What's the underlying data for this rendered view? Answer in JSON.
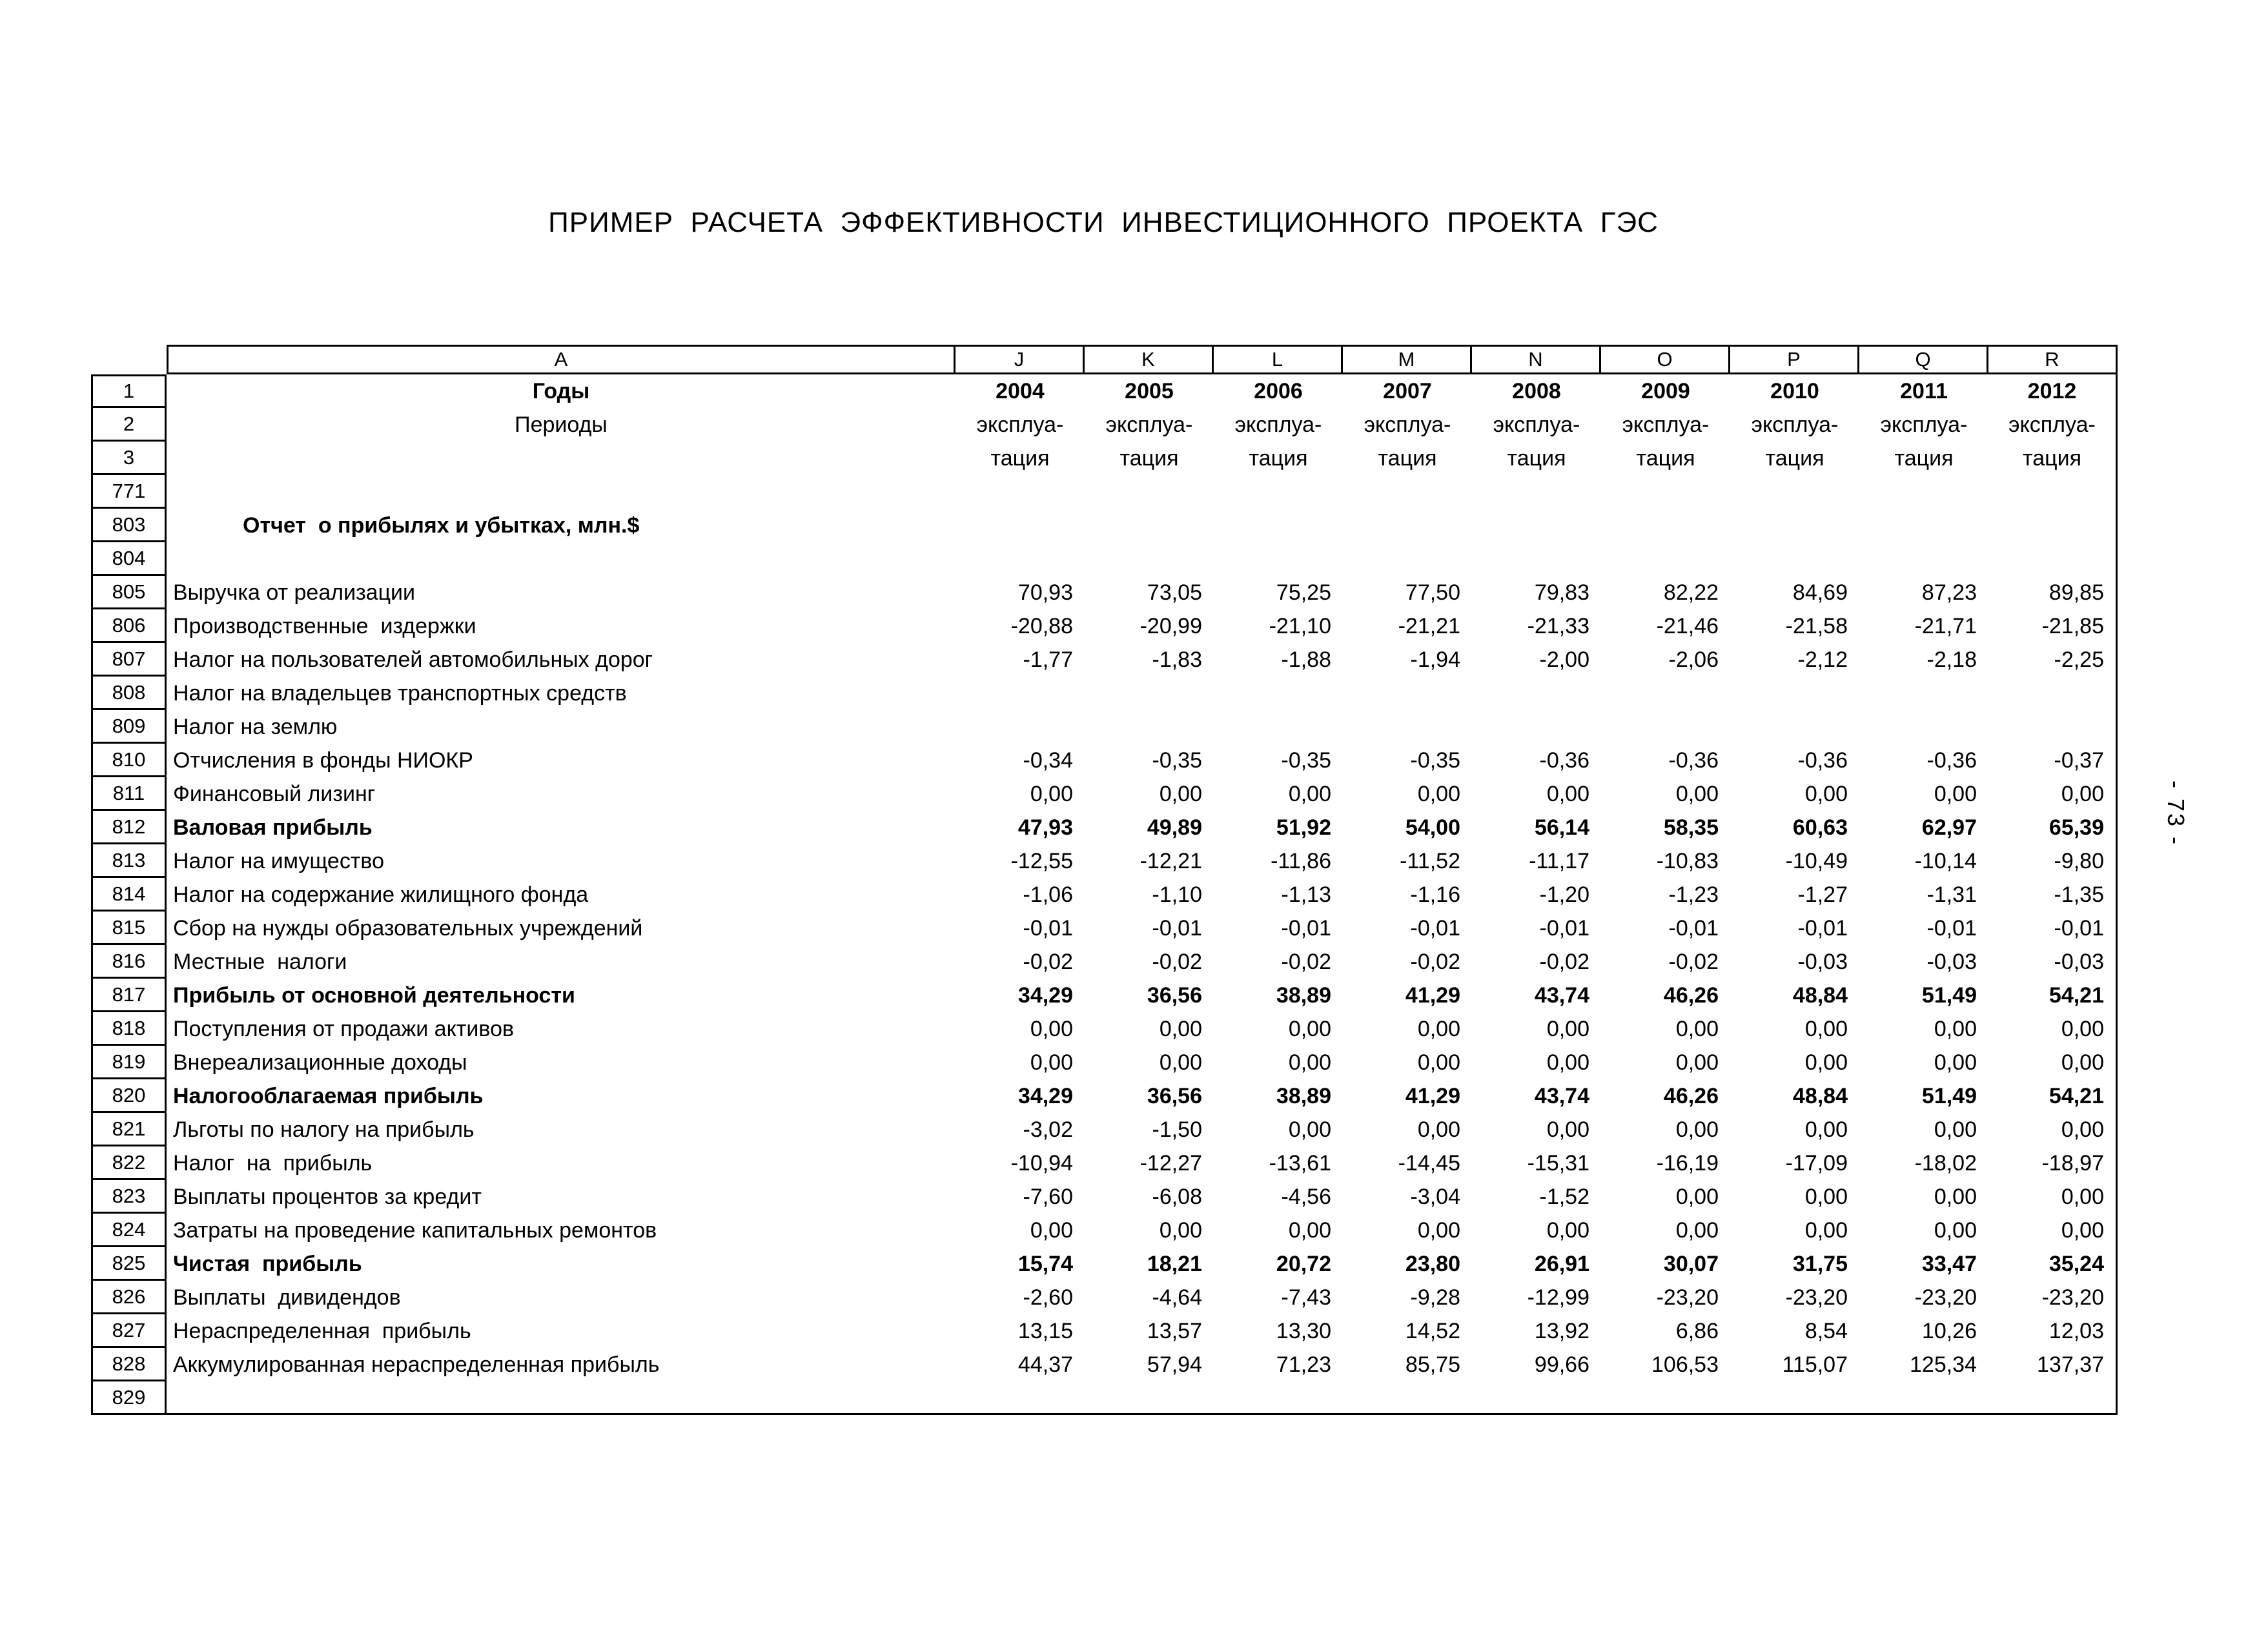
{
  "page": {
    "title": "ПРИМЕР  РАСЧЕТА  ЭФФЕКТИВНОСТИ  ИНВЕСТИЦИОННОГО  ПРОЕКТА  ГЭС",
    "side_page_number": "- 73 -"
  },
  "table": {
    "column_letters": [
      "A",
      "J",
      "K",
      "L",
      "M",
      "N",
      "O",
      "P",
      "Q",
      "R"
    ],
    "rows": [
      {
        "n": "1",
        "label": "Годы",
        "ls": "c-b",
        "cs": "c-b",
        "cells": [
          "2004",
          "2005",
          "2006",
          "2007",
          "2008",
          "2009",
          "2010",
          "2011",
          "2012"
        ]
      },
      {
        "n": "2",
        "label": "Периоды",
        "ls": "c",
        "cs": "c",
        "cells": [
          "эксплуа-",
          "эксплуа-",
          "эксплуа-",
          "эксплуа-",
          "эксплуа-",
          "эксплуа-",
          "эксплуа-",
          "эксплуа-",
          "эксплуа-"
        ]
      },
      {
        "n": "3",
        "label": "",
        "ls": "l",
        "cs": "c",
        "cells": [
          "тация",
          "тация",
          "тация",
          "тация",
          "тация",
          "тация",
          "тация",
          "тация",
          "тация"
        ]
      },
      {
        "n": "771",
        "label": "",
        "ls": "l",
        "cs": "r",
        "cells": [
          "",
          "",
          "",
          "",
          "",
          "",
          "",
          "",
          ""
        ]
      },
      {
        "n": "803",
        "label": "Отчет  о прибылях и убытках, млн.$",
        "ls": "i-b",
        "cs": "r",
        "cells": [
          "",
          "",
          "",
          "",
          "",
          "",
          "",
          "",
          ""
        ]
      },
      {
        "n": "804",
        "label": "",
        "ls": "l",
        "cs": "r",
        "cells": [
          "",
          "",
          "",
          "",
          "",
          "",
          "",
          "",
          ""
        ]
      },
      {
        "n": "805",
        "label": "Выручка от реализации",
        "ls": "l",
        "cs": "r",
        "cells": [
          "70,93",
          "73,05",
          "75,25",
          "77,50",
          "79,83",
          "82,22",
          "84,69",
          "87,23",
          "89,85"
        ]
      },
      {
        "n": "806",
        "label": "Производственные  издержки",
        "ls": "l",
        "cs": "r",
        "cells": [
          "-20,88",
          "-20,99",
          "-21,10",
          "-21,21",
          "-21,33",
          "-21,46",
          "-21,58",
          "-21,71",
          "-21,85"
        ]
      },
      {
        "n": "807",
        "label": "Налог на пользователей автомобильных дорог",
        "ls": "l",
        "cs": "r",
        "cells": [
          "-1,77",
          "-1,83",
          "-1,88",
          "-1,94",
          "-2,00",
          "-2,06",
          "-2,12",
          "-2,18",
          "-2,25"
        ]
      },
      {
        "n": "808",
        "label": "Налог на владельцев транспортных средств",
        "ls": "l",
        "cs": "r",
        "cells": [
          "",
          "",
          "",
          "",
          "",
          "",
          "",
          "",
          ""
        ]
      },
      {
        "n": "809",
        "label": "Налог на землю",
        "ls": "l",
        "cs": "r",
        "cells": [
          "",
          "",
          "",
          "",
          "",
          "",
          "",
          "",
          ""
        ]
      },
      {
        "n": "810",
        "label": "Отчисления в фонды НИОКР",
        "ls": "l",
        "cs": "r",
        "cells": [
          "-0,34",
          "-0,35",
          "-0,35",
          "-0,35",
          "-0,36",
          "-0,36",
          "-0,36",
          "-0,36",
          "-0,37"
        ]
      },
      {
        "n": "811",
        "label": "Финансовый лизинг",
        "ls": "l",
        "cs": "r",
        "cells": [
          "0,00",
          "0,00",
          "0,00",
          "0,00",
          "0,00",
          "0,00",
          "0,00",
          "0,00",
          "0,00"
        ]
      },
      {
        "n": "812",
        "label": "Валовая прибыль",
        "ls": "l-b",
        "cs": "r-b",
        "cells": [
          "47,93",
          "49,89",
          "51,92",
          "54,00",
          "56,14",
          "58,35",
          "60,63",
          "62,97",
          "65,39"
        ]
      },
      {
        "n": "813",
        "label": "Налог на имущество",
        "ls": "l",
        "cs": "r",
        "cells": [
          "-12,55",
          "-12,21",
          "-11,86",
          "-11,52",
          "-11,17",
          "-10,83",
          "-10,49",
          "-10,14",
          "-9,80"
        ]
      },
      {
        "n": "814",
        "label": "Налог на содержание жилищного фонда",
        "ls": "l",
        "cs": "r",
        "cells": [
          "-1,06",
          "-1,10",
          "-1,13",
          "-1,16",
          "-1,20",
          "-1,23",
          "-1,27",
          "-1,31",
          "-1,35"
        ]
      },
      {
        "n": "815",
        "label": "Сбор на нужды образовательных учреждений",
        "ls": "l",
        "cs": "r",
        "cells": [
          "-0,01",
          "-0,01",
          "-0,01",
          "-0,01",
          "-0,01",
          "-0,01",
          "-0,01",
          "-0,01",
          "-0,01"
        ]
      },
      {
        "n": "816",
        "label": "Местные  налоги",
        "ls": "l",
        "cs": "r",
        "cells": [
          "-0,02",
          "-0,02",
          "-0,02",
          "-0,02",
          "-0,02",
          "-0,02",
          "-0,03",
          "-0,03",
          "-0,03"
        ]
      },
      {
        "n": "817",
        "label": "Прибыль от основной деятельности",
        "ls": "l-b",
        "cs": "r-b",
        "cells": [
          "34,29",
          "36,56",
          "38,89",
          "41,29",
          "43,74",
          "46,26",
          "48,84",
          "51,49",
          "54,21"
        ]
      },
      {
        "n": "818",
        "label": "Поступления от продажи активов",
        "ls": "l",
        "cs": "r",
        "cells": [
          "0,00",
          "0,00",
          "0,00",
          "0,00",
          "0,00",
          "0,00",
          "0,00",
          "0,00",
          "0,00"
        ]
      },
      {
        "n": "819",
        "label": "Внереализационные доходы",
        "ls": "l",
        "cs": "r",
        "cells": [
          "0,00",
          "0,00",
          "0,00",
          "0,00",
          "0,00",
          "0,00",
          "0,00",
          "0,00",
          "0,00"
        ]
      },
      {
        "n": "820",
        "label": "Налогооблагаемая прибыль",
        "ls": "l-b",
        "cs": "r-b",
        "cells": [
          "34,29",
          "36,56",
          "38,89",
          "41,29",
          "43,74",
          "46,26",
          "48,84",
          "51,49",
          "54,21"
        ]
      },
      {
        "n": "821",
        "label": "Льготы по налогу на прибыль",
        "ls": "l",
        "cs": "r",
        "cells": [
          "-3,02",
          "-1,50",
          "0,00",
          "0,00",
          "0,00",
          "0,00",
          "0,00",
          "0,00",
          "0,00"
        ]
      },
      {
        "n": "822",
        "label": "Налог  на  прибыль",
        "ls": "l",
        "cs": "r",
        "cells": [
          "-10,94",
          "-12,27",
          "-13,61",
          "-14,45",
          "-15,31",
          "-16,19",
          "-17,09",
          "-18,02",
          "-18,97"
        ]
      },
      {
        "n": "823",
        "label": "Выплаты процентов за кредит",
        "ls": "l",
        "cs": "r",
        "cells": [
          "-7,60",
          "-6,08",
          "-4,56",
          "-3,04",
          "-1,52",
          "0,00",
          "0,00",
          "0,00",
          "0,00"
        ]
      },
      {
        "n": "824",
        "label": "Затраты на проведение капитальных ремонтов",
        "ls": "l",
        "cs": "r",
        "cells": [
          "0,00",
          "0,00",
          "0,00",
          "0,00",
          "0,00",
          "0,00",
          "0,00",
          "0,00",
          "0,00"
        ]
      },
      {
        "n": "825",
        "label": "Чистая  прибыль",
        "ls": "l-b",
        "cs": "r-b",
        "cells": [
          "15,74",
          "18,21",
          "20,72",
          "23,80",
          "26,91",
          "30,07",
          "31,75",
          "33,47",
          "35,24"
        ]
      },
      {
        "n": "826",
        "label": "Выплаты  дивидендов",
        "ls": "l",
        "cs": "r",
        "cells": [
          "-2,60",
          "-4,64",
          "-7,43",
          "-9,28",
          "-12,99",
          "-23,20",
          "-23,20",
          "-23,20",
          "-23,20"
        ]
      },
      {
        "n": "827",
        "label": "Нераспределенная  прибыль",
        "ls": "l",
        "cs": "r",
        "cells": [
          "13,15",
          "13,57",
          "13,30",
          "14,52",
          "13,92",
          "6,86",
          "8,54",
          "10,26",
          "12,03"
        ]
      },
      {
        "n": "828",
        "label": "Аккумулированная нераспределенная прибыль",
        "ls": "l",
        "cs": "r",
        "cells": [
          "44,37",
          "57,94",
          "71,23",
          "85,75",
          "99,66",
          "106,53",
          "115,07",
          "125,34",
          "137,37"
        ]
      },
      {
        "n": "829",
        "label": "",
        "ls": "l",
        "cs": "r",
        "cells": [
          "",
          "",
          "",
          "",
          "",
          "",
          "",
          "",
          ""
        ]
      }
    ]
  }
}
